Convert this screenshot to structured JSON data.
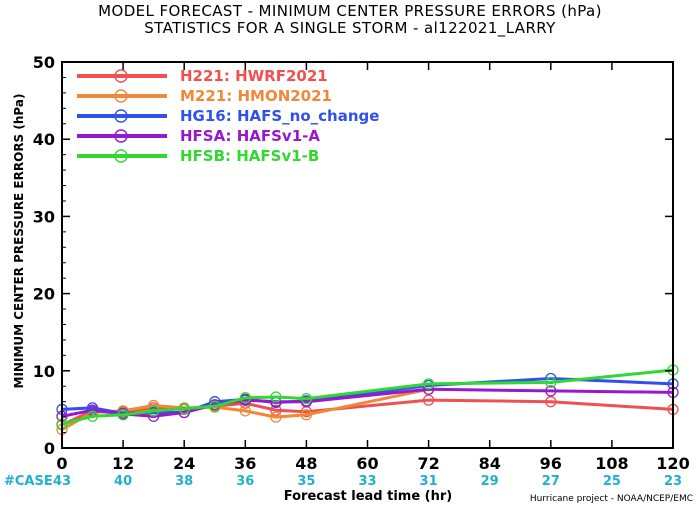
{
  "chart_data": {
    "type": "line",
    "title": [
      "MODEL FORECAST - MINIMUM CENTER PRESSURE ERRORS (hPa)",
      "STATISTICS FOR A SINGLE STORM - al122021_LARRY"
    ],
    "xlabel": "Forecast lead time (hr)",
    "ylabel": "MINIMUM CENTER PRESSURE ERRORS (hPa)",
    "xlim": [
      0,
      120
    ],
    "ylim": [
      0,
      50
    ],
    "xticks": [
      0,
      12,
      24,
      36,
      48,
      60,
      72,
      84,
      96,
      108,
      120
    ],
    "yticks": [
      0,
      10,
      20,
      30,
      40,
      50
    ],
    "legend_position": "top-left",
    "case_label": "#CASE",
    "case_counts": [
      43,
      40,
      38,
      36,
      35,
      33,
      31,
      29,
      27,
      25,
      23
    ],
    "case_color": "#20b0d0",
    "credit": "Hurricane project - NOAA/NCEP/EMC",
    "series": [
      {
        "name": "H221: HWRF2021",
        "color": "#f05050",
        "x": [
          0,
          6,
          12,
          18,
          24,
          30,
          36,
          42,
          48,
          72,
          96,
          120
        ],
        "y": [
          3.0,
          4.8,
          4.7,
          5.2,
          5.0,
          5.4,
          5.8,
          4.9,
          4.7,
          6.2,
          6.0,
          5.0
        ]
      },
      {
        "name": "M221: HMON2021",
        "color": "#f08838",
        "x": [
          0,
          6,
          12,
          18,
          24,
          30,
          36,
          42,
          48,
          72
        ],
        "y": [
          2.4,
          4.6,
          4.8,
          5.5,
          5.2,
          5.3,
          4.8,
          4.0,
          4.3,
          7.6
        ]
      },
      {
        "name": "HG16: HAFS_no_change",
        "color": "#3050f0",
        "x": [
          0,
          6,
          12,
          18,
          24,
          30,
          36,
          42,
          48,
          72,
          96,
          120
        ],
        "y": [
          5.0,
          5.2,
          4.5,
          4.6,
          4.6,
          6.0,
          6.3,
          5.9,
          6.1,
          8.1,
          9.0,
          8.3
        ]
      },
      {
        "name": "HFSA: HAFSv1-A",
        "color": "#9818d0",
        "x": [
          0,
          6,
          12,
          18,
          24,
          30,
          36,
          42,
          48,
          72,
          96,
          120
        ],
        "y": [
          4.1,
          4.9,
          4.4,
          4.1,
          4.6,
          5.6,
          6.2,
          6.0,
          6.0,
          7.6,
          7.4,
          7.2
        ]
      },
      {
        "name": "HFSB: HAFSv1-B",
        "color": "#30d830",
        "x": [
          0,
          6,
          12,
          18,
          24,
          30,
          36,
          42,
          48,
          72,
          96,
          120
        ],
        "y": [
          3.1,
          4.1,
          4.3,
          4.8,
          5.1,
          5.4,
          6.5,
          6.6,
          6.4,
          8.3,
          8.5,
          10.1
        ]
      }
    ]
  }
}
